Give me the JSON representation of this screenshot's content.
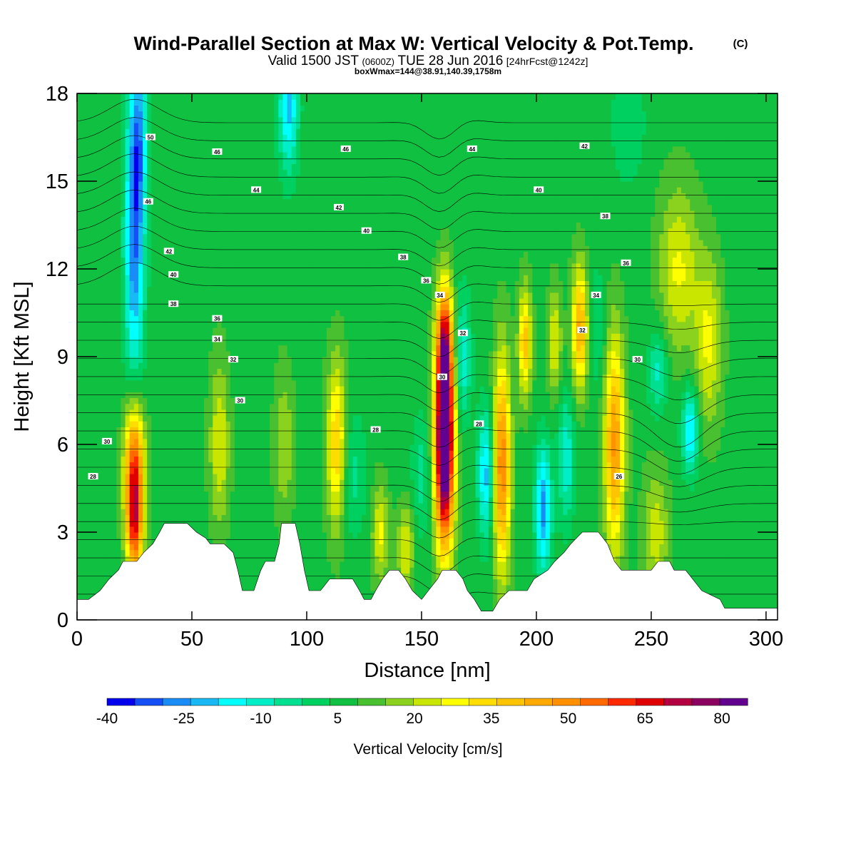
{
  "chart_data": {
    "type": "heatmap",
    "title": "Wind-Parallel Section at Max W: Vertical Velocity & Pot.Temp.",
    "title_unit": "(C)",
    "subtitle_parts": [
      "Valid 1500 JST",
      "(0600Z)",
      "TUE 28 Jun 2016",
      "[24hrFcst@1242z]"
    ],
    "subtitle2": "boxWmax=144@38.91,140.39,1758m",
    "xlabel": "Distance [nm]",
    "ylabel": "Height [Kft MSL]",
    "xlim": [
      0,
      305
    ],
    "ylim": [
      0,
      18
    ],
    "x_ticks": [
      0,
      50,
      100,
      150,
      200,
      250,
      300
    ],
    "y_ticks": [
      0,
      3,
      6,
      9,
      12,
      15,
      18
    ],
    "colorbar": {
      "title": "Vertical Velocity [cm/s]",
      "bounds": [
        -40,
        85
      ],
      "step": 5,
      "labels": [
        -40,
        -25,
        -10,
        5,
        20,
        35,
        50,
        65,
        80
      ],
      "colors": [
        "#0000ee",
        "#1450f5",
        "#1a8cf5",
        "#19b9f5",
        "#00ffff",
        "#00eec8",
        "#00e090",
        "#00d060",
        "#10c040",
        "#48c030",
        "#8ad21e",
        "#c8e600",
        "#ffff00",
        "#ffdd00",
        "#ffc400",
        "#ffaa00",
        "#ff9000",
        "#ff6a00",
        "#ff2a00",
        "#e00000",
        "#b40040",
        "#8c0060",
        "#620090"
      ]
    },
    "w_background": 3,
    "updrafts": [
      {
        "x": 25,
        "z": 5.2,
        "sx": 3.0,
        "sz": 1.6,
        "w": 50
      },
      {
        "x": 25,
        "z": 3.0,
        "sx": 2.5,
        "sz": 1.2,
        "w": 35
      },
      {
        "x": 62,
        "z": 6.0,
        "sx": 3.0,
        "sz": 2.0,
        "w": 17
      },
      {
        "x": 90,
        "z": 6.0,
        "sx": 3.0,
        "sz": 1.8,
        "w": 12
      },
      {
        "x": 113,
        "z": 6.0,
        "sx": 3.0,
        "sz": 2.0,
        "w": 28
      },
      {
        "x": 132,
        "z": 3.0,
        "sx": 2.5,
        "sz": 1.2,
        "w": 18
      },
      {
        "x": 143,
        "z": 2.5,
        "sx": 2.5,
        "sz": 1.0,
        "w": 18
      },
      {
        "x": 160,
        "z": 6.0,
        "sx": 2.9,
        "sz": 2.4,
        "w": 88
      },
      {
        "x": 160,
        "z": 9.5,
        "sx": 2.5,
        "sz": 1.5,
        "w": 40
      },
      {
        "x": 185,
        "z": 5.3,
        "sx": 2.6,
        "sz": 2.6,
        "w": 42
      },
      {
        "x": 195,
        "z": 9.5,
        "sx": 2.0,
        "sz": 1.3,
        "w": 30
      },
      {
        "x": 208,
        "z": 9.5,
        "sx": 2.0,
        "sz": 1.3,
        "w": 18
      },
      {
        "x": 219,
        "z": 10.0,
        "sx": 2.5,
        "sz": 1.5,
        "w": 34
      },
      {
        "x": 234,
        "z": 6.0,
        "sx": 3.0,
        "sz": 2.6,
        "w": 38
      },
      {
        "x": 252,
        "z": 3.0,
        "sx": 4.0,
        "sz": 1.5,
        "w": 15
      },
      {
        "x": 262,
        "z": 12.0,
        "sx": 6.0,
        "sz": 2.0,
        "w": 18
      },
      {
        "x": 275,
        "z": 9.5,
        "sx": 4.0,
        "sz": 2.0,
        "w": 18
      }
    ],
    "downdrafts": [
      {
        "x": 25,
        "z": 13.0,
        "sx": 3.0,
        "sz": 3.5,
        "w": -32
      },
      {
        "x": 27,
        "z": 16.5,
        "sx": 2.5,
        "sz": 2.0,
        "w": -20
      },
      {
        "x": 92,
        "z": 17.5,
        "sx": 3.0,
        "sz": 1.5,
        "w": -25
      },
      {
        "x": 120,
        "z": 5.0,
        "sx": 4.0,
        "sz": 1.5,
        "w": -10
      },
      {
        "x": 150,
        "z": 5.0,
        "sx": 3.0,
        "sz": 1.5,
        "w": -10
      },
      {
        "x": 168,
        "z": 9.0,
        "sx": 2.5,
        "sz": 1.5,
        "w": -18
      },
      {
        "x": 178,
        "z": 5.0,
        "sx": 2.5,
        "sz": 1.5,
        "w": -25
      },
      {
        "x": 203,
        "z": 3.8,
        "sx": 2.5,
        "sz": 1.5,
        "w": -30
      },
      {
        "x": 213,
        "z": 5.5,
        "sx": 2.5,
        "sz": 1.5,
        "w": -18
      },
      {
        "x": 226,
        "z": 10.0,
        "sx": 3.0,
        "sz": 1.5,
        "w": -8
      },
      {
        "x": 267,
        "z": 6.5,
        "sx": 2.5,
        "sz": 1.0,
        "w": -25
      },
      {
        "x": 253,
        "z": 8.5,
        "sx": 3.0,
        "sz": 1.0,
        "w": -15
      },
      {
        "x": 240,
        "z": 17.0,
        "sx": 5.0,
        "sz": 1.5,
        "w": -8
      }
    ],
    "terrain": [
      [
        0,
        0.7
      ],
      [
        5,
        0.7
      ],
      [
        10,
        1.0
      ],
      [
        14,
        1.4
      ],
      [
        18,
        1.7
      ],
      [
        20,
        2.0
      ],
      [
        26,
        2.0
      ],
      [
        29,
        2.3
      ],
      [
        33,
        2.6
      ],
      [
        36,
        3.0
      ],
      [
        38,
        3.3
      ],
      [
        48,
        3.3
      ],
      [
        52,
        3.0
      ],
      [
        56,
        2.8
      ],
      [
        58,
        2.6
      ],
      [
        64,
        2.6
      ],
      [
        68,
        2.3
      ],
      [
        70,
        1.7
      ],
      [
        72,
        1.0
      ],
      [
        77,
        1.0
      ],
      [
        80,
        1.7
      ],
      [
        82,
        2.0
      ],
      [
        86,
        2.0
      ],
      [
        88,
        2.6
      ],
      [
        89,
        3.3
      ],
      [
        95,
        3.3
      ],
      [
        97,
        2.6
      ],
      [
        99,
        1.7
      ],
      [
        101,
        1.0
      ],
      [
        106,
        1.0
      ],
      [
        110,
        1.4
      ],
      [
        120,
        1.4
      ],
      [
        123,
        1.0
      ],
      [
        125,
        0.7
      ],
      [
        128,
        0.7
      ],
      [
        130,
        1.0
      ],
      [
        133,
        1.4
      ],
      [
        136,
        1.7
      ],
      [
        140,
        1.7
      ],
      [
        143,
        1.4
      ],
      [
        146,
        1.0
      ],
      [
        150,
        0.7
      ],
      [
        153,
        1.0
      ],
      [
        157,
        1.4
      ],
      [
        159,
        1.7
      ],
      [
        165,
        1.7
      ],
      [
        168,
        1.4
      ],
      [
        170,
        1.0
      ],
      [
        173,
        0.7
      ],
      [
        176,
        0.3
      ],
      [
        181,
        0.3
      ],
      [
        184,
        0.7
      ],
      [
        188,
        1.0
      ],
      [
        196,
        1.0
      ],
      [
        199,
        1.4
      ],
      [
        205,
        1.7
      ],
      [
        208,
        2.0
      ],
      [
        212,
        2.3
      ],
      [
        215,
        2.6
      ],
      [
        220,
        3.0
      ],
      [
        227,
        3.0
      ],
      [
        231,
        2.6
      ],
      [
        234,
        2.0
      ],
      [
        237,
        1.7
      ],
      [
        250,
        1.7
      ],
      [
        253,
        2.0
      ],
      [
        258,
        2.0
      ],
      [
        260,
        1.7
      ],
      [
        265,
        1.7
      ],
      [
        268,
        1.4
      ],
      [
        272,
        1.0
      ],
      [
        280,
        0.7
      ],
      [
        282,
        0.4
      ],
      [
        305,
        0.4
      ]
    ],
    "theta_contour_labels": [
      {
        "x": 32,
        "z": 16.5,
        "text": "50"
      },
      {
        "x": 61,
        "z": 16.0,
        "text": "46"
      },
      {
        "x": 117,
        "z": 16.1,
        "text": "46"
      },
      {
        "x": 172,
        "z": 16.1,
        "text": "44"
      },
      {
        "x": 221,
        "z": 16.2,
        "text": "42"
      },
      {
        "x": 31,
        "z": 14.3,
        "text": "46"
      },
      {
        "x": 78,
        "z": 14.7,
        "text": "44"
      },
      {
        "x": 114,
        "z": 14.1,
        "text": "42"
      },
      {
        "x": 201,
        "z": 14.7,
        "text": "40"
      },
      {
        "x": 230,
        "z": 13.8,
        "text": "38"
      },
      {
        "x": 126,
        "z": 13.3,
        "text": "40"
      },
      {
        "x": 40,
        "z": 12.6,
        "text": "42"
      },
      {
        "x": 142,
        "z": 12.4,
        "text": "38"
      },
      {
        "x": 239,
        "z": 12.2,
        "text": "36"
      },
      {
        "x": 42,
        "z": 11.8,
        "text": "40"
      },
      {
        "x": 152,
        "z": 11.6,
        "text": "36"
      },
      {
        "x": 226,
        "z": 11.1,
        "text": "34"
      },
      {
        "x": 158,
        "z": 11.1,
        "text": "34"
      },
      {
        "x": 42,
        "z": 10.8,
        "text": "38"
      },
      {
        "x": 61,
        "z": 10.3,
        "text": "36"
      },
      {
        "x": 168,
        "z": 9.8,
        "text": "32"
      },
      {
        "x": 220,
        "z": 9.9,
        "text": "32"
      },
      {
        "x": 61,
        "z": 9.6,
        "text": "34"
      },
      {
        "x": 68,
        "z": 8.9,
        "text": "32"
      },
      {
        "x": 159,
        "z": 8.3,
        "text": "30"
      },
      {
        "x": 244,
        "z": 8.9,
        "text": "30"
      },
      {
        "x": 71,
        "z": 7.5,
        "text": "30"
      },
      {
        "x": 13,
        "z": 6.1,
        "text": "30"
      },
      {
        "x": 130,
        "z": 6.5,
        "text": "28"
      },
      {
        "x": 175,
        "z": 6.7,
        "text": "28"
      },
      {
        "x": 7,
        "z": 4.9,
        "text": "28"
      },
      {
        "x": 236,
        "z": 4.9,
        "text": "26"
      }
    ]
  }
}
